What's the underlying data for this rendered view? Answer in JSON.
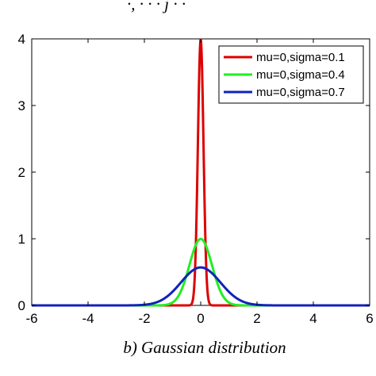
{
  "header_fragment": "·, · · · j · ·",
  "caption": "b) Gaussian distribution",
  "chart_data": {
    "type": "line",
    "xlim": [
      -6,
      6
    ],
    "ylim": [
      0,
      4
    ],
    "xticks": [
      -6,
      -4,
      -2,
      0,
      2,
      4,
      6
    ],
    "yticks": [
      0,
      1,
      2,
      3,
      4
    ],
    "grid": false,
    "legend_position": "top-right",
    "x_range_plotted": [
      -6,
      6
    ],
    "series": [
      {
        "name": "mu=0,sigma=0.1",
        "mu": 0,
        "sigma": 0.1,
        "peak": 3.99,
        "color": "#dd0000"
      },
      {
        "name": "mu=0,sigma=0.4",
        "mu": 0,
        "sigma": 0.4,
        "peak": 1.0,
        "color": "#22ee22"
      },
      {
        "name": "mu=0,sigma=0.7",
        "mu": 0,
        "sigma": 0.7,
        "peak": 0.57,
        "color": "#1122bb"
      }
    ]
  }
}
